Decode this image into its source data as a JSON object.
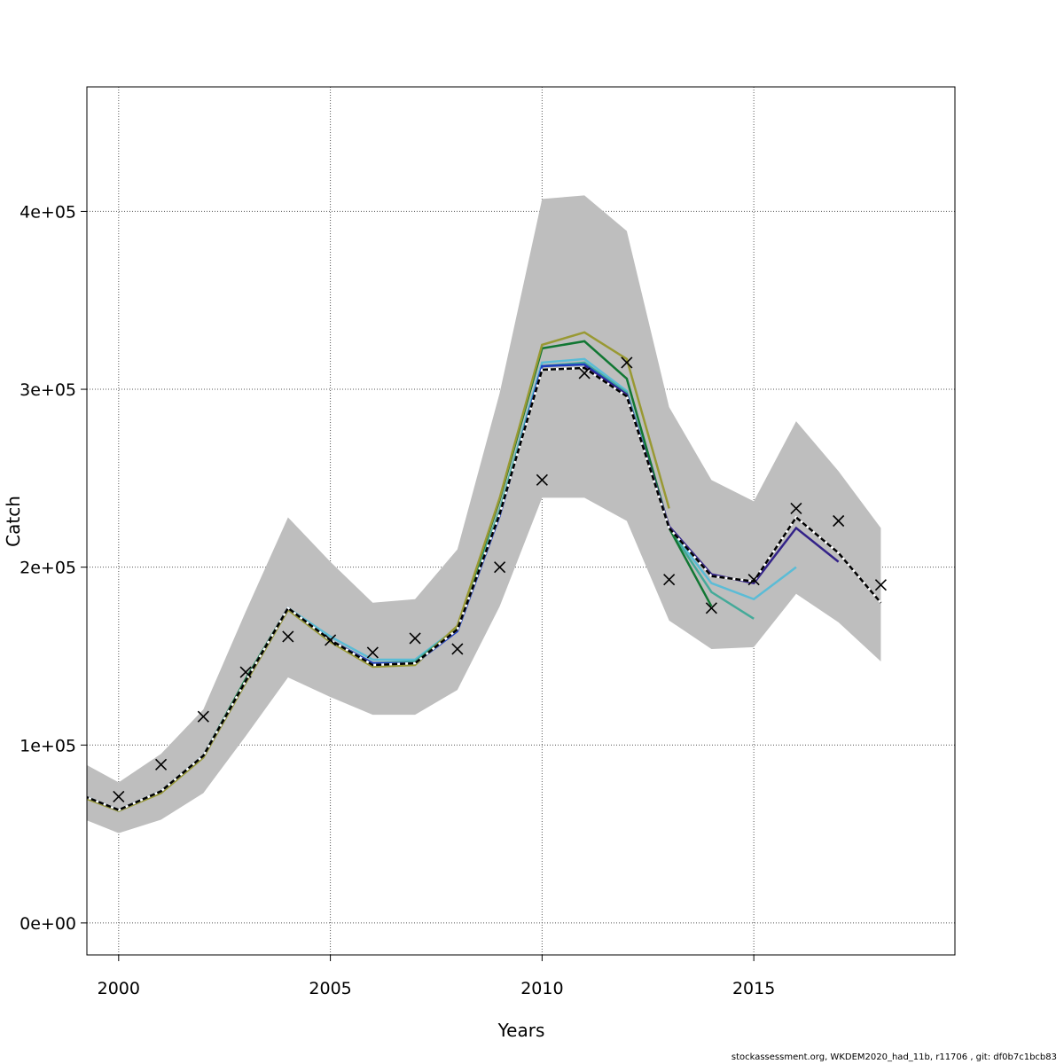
{
  "chart_data": {
    "type": "line",
    "xlabel": "Years",
    "ylabel": "Catch",
    "xlim": [
      1999.25,
      2019.75
    ],
    "ylim": [
      -18000,
      470000
    ],
    "grid": true,
    "x_ticks": [
      2000,
      2005,
      2010,
      2015
    ],
    "x_tick_labels": [
      "2000",
      "2005",
      "2010",
      "2015"
    ],
    "y_ticks": [
      0,
      100000,
      200000,
      300000,
      400000
    ],
    "y_tick_labels": [
      "0e+00",
      "1e+05",
      "2e+05",
      "3e+05",
      "4e+05"
    ],
    "band": {
      "x": [
        1999,
        2000,
        2001,
        2002,
        2003,
        2004,
        2005,
        2006,
        2007,
        2008,
        2009,
        2010,
        2011,
        2012,
        2013,
        2014,
        2015,
        2016,
        2017,
        2018
      ],
      "lower": [
        60000,
        50500,
        58000,
        73000,
        105000,
        138000,
        127000,
        117000,
        117000,
        131000,
        178000,
        239000,
        239000,
        226000,
        170000,
        154000,
        155000,
        185000,
        169000,
        147000
      ],
      "upper": [
        92000,
        79000,
        95000,
        120000,
        175000,
        228000,
        203000,
        180000,
        182000,
        210000,
        298000,
        407000,
        409000,
        389000,
        290000,
        249000,
        237000,
        282000,
        254000,
        222000
      ],
      "color": "#bebebe"
    },
    "observed": {
      "marker": "x",
      "x": [
        2000,
        2001,
        2002,
        2003,
        2004,
        2005,
        2006,
        2007,
        2008,
        2009,
        2010,
        2011,
        2012,
        2013,
        2014,
        2015,
        2016,
        2017,
        2018
      ],
      "y": [
        71000,
        89000,
        116000,
        141000,
        161000,
        159000,
        152000,
        160000,
        154000,
        200000,
        249000,
        309000,
        315000,
        193000,
        177000,
        193000,
        233000,
        226000,
        190000
      ]
    },
    "series": [
      {
        "color": "#5bbcd6",
        "dashed": false,
        "x": [
          1999,
          2000,
          2001,
          2002,
          2003,
          2004,
          2005,
          2006,
          2007,
          2008,
          2009,
          2010,
          2011,
          2012,
          2013,
          2014,
          2015,
          2016
        ],
        "y": [
          73000,
          63500,
          74000,
          94000,
          137000,
          177000,
          161000,
          148000,
          148000,
          166000,
          232000,
          315000,
          317000,
          299000,
          222000,
          191000,
          182000,
          200000
        ]
      },
      {
        "color": "#44aa99",
        "dashed": false,
        "x": [
          1999,
          2000,
          2001,
          2002,
          2003,
          2004,
          2005,
          2006,
          2007,
          2008,
          2009,
          2010,
          2011,
          2012,
          2013,
          2014,
          2015
        ],
        "y": [
          73000,
          63000,
          74000,
          94000,
          136000,
          177000,
          159000,
          146000,
          147000,
          166000,
          232000,
          313000,
          315000,
          298000,
          222000,
          186000,
          171000
        ]
      },
      {
        "color": "#117733",
        "dashed": false,
        "x": [
          1999,
          2000,
          2001,
          2002,
          2003,
          2004,
          2005,
          2006,
          2007,
          2008,
          2009,
          2010,
          2011,
          2012,
          2013,
          2014
        ],
        "y": [
          73000,
          63500,
          74000,
          94000,
          137000,
          177000,
          159000,
          145000,
          146000,
          166000,
          238000,
          323000,
          327000,
          306000,
          222000,
          178000
        ]
      },
      {
        "color": "#999933",
        "dashed": false,
        "x": [
          1999,
          2000,
          2001,
          2002,
          2003,
          2004,
          2005,
          2006,
          2007,
          2008,
          2009,
          2010,
          2011,
          2012,
          2013
        ],
        "y": [
          72000,
          63000,
          73000,
          93000,
          135000,
          176000,
          158000,
          144000,
          145000,
          167000,
          239000,
          325000,
          332000,
          317000,
          233000
        ]
      },
      {
        "color": "#1f3fbf",
        "dashed": false,
        "x": [
          1999,
          2000,
          2001,
          2002,
          2003,
          2004,
          2005,
          2006,
          2007,
          2008,
          2009,
          2010,
          2011,
          2012
        ],
        "y": [
          73000,
          63500,
          74000,
          94000,
          136000,
          177000,
          159000,
          146000,
          146000,
          164000,
          229000,
          313000,
          314000,
          297000
        ]
      },
      {
        "color": "#332288",
        "dashed": false,
        "x": [
          2011,
          2012,
          2013,
          2014,
          2015,
          2016,
          2017
        ],
        "y": [
          313000,
          297000,
          223000,
          196000,
          191000,
          222000,
          203000
        ]
      },
      {
        "color": "#000000",
        "dashed": true,
        "x": [
          1999,
          2000,
          2001,
          2002,
          2003,
          2004,
          2005,
          2006,
          2007,
          2008,
          2009,
          2010,
          2011,
          2012,
          2013,
          2014,
          2015,
          2016,
          2017,
          2018
        ],
        "y": [
          73000,
          63500,
          74000,
          94000,
          136000,
          177000,
          159000,
          145000,
          146000,
          165000,
          230000,
          311000,
          312000,
          296000,
          222000,
          195000,
          192000,
          228000,
          208000,
          180000
        ]
      }
    ]
  },
  "footer": "stockassessment.org, WKDEM2020_had_11b, r11706 , git: df0b7c1bcb83"
}
